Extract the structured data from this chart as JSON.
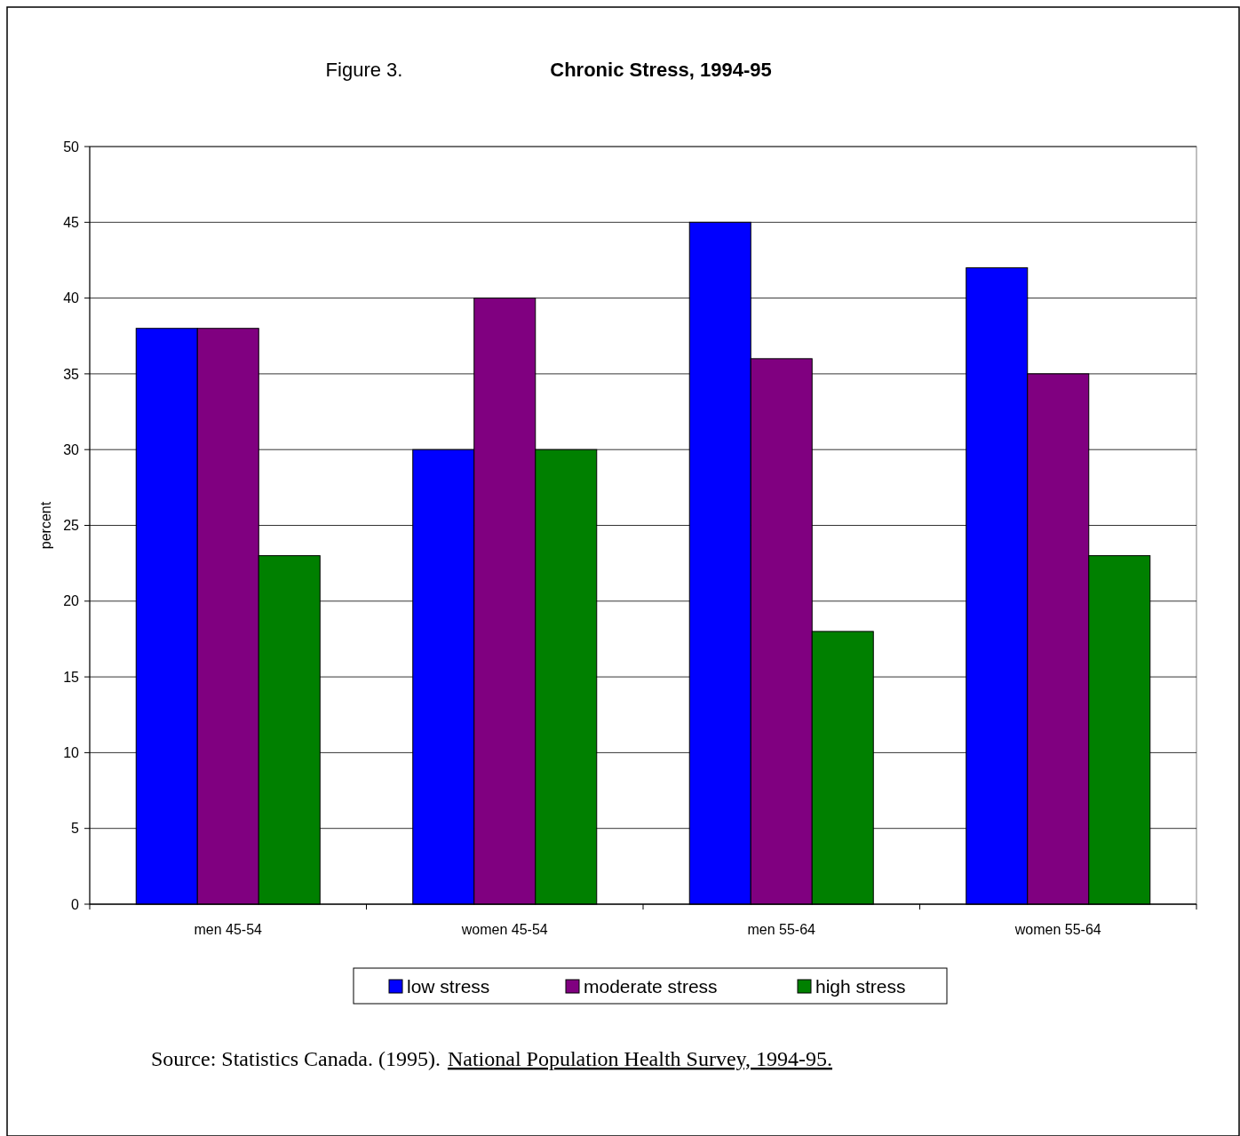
{
  "chart_data": {
    "type": "bar",
    "title": "Chronic Stress, 1994-95",
    "subtitle": "Figure 3.",
    "ylabel": "percent",
    "categories": [
      "men 45-54",
      "women 45-54",
      "men 55-64",
      "women 55-64"
    ],
    "series": [
      {
        "name": "low stress",
        "color": "#0000ff",
        "values": [
          38,
          30,
          45,
          42
        ]
      },
      {
        "name": "moderate stress",
        "color": "#800080",
        "values": [
          38,
          40,
          36,
          35
        ]
      },
      {
        "name": "high stress",
        "color": "#008000",
        "values": [
          23,
          30,
          18,
          23
        ]
      }
    ],
    "ylim": [
      0,
      50
    ],
    "yticks": [
      0,
      5,
      10,
      15,
      20,
      25,
      30,
      35,
      40,
      45,
      50
    ],
    "grid": "y",
    "legend": "bottom",
    "annotations": [
      "Source: Statistics Canada. (1995).",
      "National Population Health Survey, 1994-95."
    ]
  }
}
